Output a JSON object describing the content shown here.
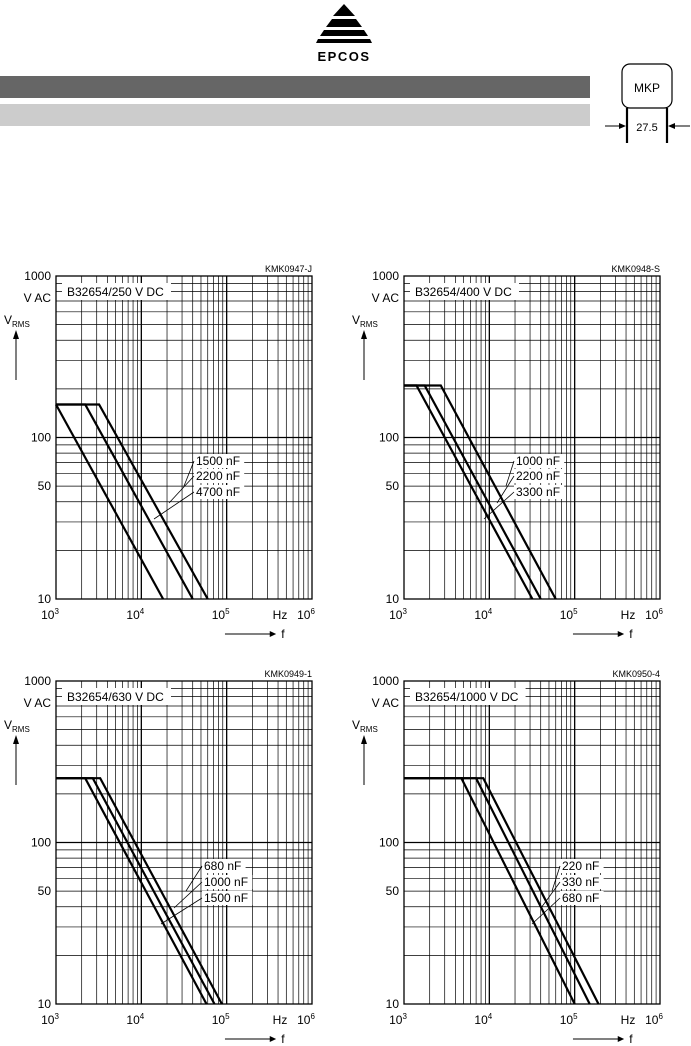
{
  "header": {
    "brand": "EPCOS",
    "logo_icon": "epcos-triangle-logo-icon",
    "bar_dark_color": "#666666",
    "bar_light_color": "#cccccc",
    "package_label": "MKP",
    "package_pitch": "27.5"
  },
  "chart_data": [
    {
      "type": "line",
      "code": "KMK0947-J",
      "box_label": "B32654/250 V DC",
      "y_unit": "V AC",
      "ylabel": "V",
      "ylabel_sub": "RMS",
      "xlabel": "f",
      "x_unit": "Hz",
      "x_scale": "log",
      "y_scale": "log",
      "xlim": [
        1000,
        1000000
      ],
      "ylim": [
        10,
        1000
      ],
      "x_ticks": [
        "10^3",
        "10^4",
        "10^5",
        "10^6"
      ],
      "y_ticks": [
        "1000",
        "100",
        "50",
        "10"
      ],
      "grid": true,
      "series": [
        {
          "name": "1500 nF",
          "points": [
            [
              1000,
              160
            ],
            [
              3200,
              160
            ],
            [
              60000,
              10
            ]
          ]
        },
        {
          "name": "2200 nF",
          "points": [
            [
              1000,
              160
            ],
            [
              2200,
              160
            ],
            [
              40000,
              10
            ]
          ]
        },
        {
          "name": "4700 nF",
          "points": [
            [
              1000,
              160
            ],
            [
              18000,
              10
            ]
          ]
        }
      ]
    },
    {
      "type": "line",
      "code": "KMK0948-S",
      "box_label": "B32654/400 V DC",
      "y_unit": "V AC",
      "ylabel": "V",
      "ylabel_sub": "RMS",
      "xlabel": "f",
      "x_unit": "Hz",
      "x_scale": "log",
      "y_scale": "log",
      "xlim": [
        1000,
        1000000
      ],
      "ylim": [
        10,
        1000
      ],
      "x_ticks": [
        "10^3",
        "10^4",
        "10^5",
        "10^6"
      ],
      "y_ticks": [
        "1000",
        "100",
        "50",
        "10"
      ],
      "grid": true,
      "series": [
        {
          "name": "1000 nF",
          "points": [
            [
              1000,
              210
            ],
            [
              2700,
              210
            ],
            [
              60000,
              10
            ]
          ]
        },
        {
          "name": "2200 nF",
          "points": [
            [
              1000,
              210
            ],
            [
              1750,
              210
            ],
            [
              40000,
              10
            ]
          ]
        },
        {
          "name": "3300 nF",
          "points": [
            [
              1000,
              210
            ],
            [
              1400,
              210
            ],
            [
              32000,
              10
            ]
          ]
        }
      ]
    },
    {
      "type": "line",
      "code": "KMK0949-1",
      "box_label": "B32654/630 V DC",
      "y_unit": "V AC",
      "ylabel": "V",
      "ylabel_sub": "RMS",
      "xlabel": "f",
      "x_unit": "Hz",
      "x_scale": "log",
      "y_scale": "log",
      "xlim": [
        1000,
        1000000
      ],
      "ylim": [
        10,
        1000
      ],
      "x_ticks": [
        "10^3",
        "10^4",
        "10^5",
        "10^6"
      ],
      "y_ticks": [
        "1000",
        "100",
        "50",
        "10"
      ],
      "grid": true,
      "series": [
        {
          "name": "680 nF",
          "points": [
            [
              1000,
              250
            ],
            [
              3300,
              250
            ],
            [
              88000,
              10
            ]
          ]
        },
        {
          "name": "1000 nF",
          "points": [
            [
              1000,
              250
            ],
            [
              2700,
              250
            ],
            [
              72000,
              10
            ]
          ]
        },
        {
          "name": "1500 nF",
          "points": [
            [
              1000,
              250
            ],
            [
              2200,
              250
            ],
            [
              58000,
              10
            ]
          ]
        }
      ]
    },
    {
      "type": "line",
      "code": "KMK0950-4",
      "box_label": "B32654/1000 V DC",
      "y_unit": "V AC",
      "ylabel": "V",
      "ylabel_sub": "RMS",
      "xlabel": "f",
      "x_unit": "Hz",
      "x_scale": "log",
      "y_scale": "log",
      "xlim": [
        1000,
        1000000
      ],
      "ylim": [
        10,
        1000
      ],
      "x_ticks": [
        "10^3",
        "10^4",
        "10^5",
        "10^6"
      ],
      "y_ticks": [
        "1000",
        "100",
        "50",
        "10"
      ],
      "grid": true,
      "series": [
        {
          "name": "220 nF",
          "points": [
            [
              1000,
              250
            ],
            [
              8500,
              250
            ],
            [
              190000,
              10
            ]
          ]
        },
        {
          "name": "330 nF",
          "points": [
            [
              1000,
              250
            ],
            [
              7000,
              250
            ],
            [
              150000,
              10
            ]
          ]
        },
        {
          "name": "680 nF",
          "points": [
            [
              1000,
              250
            ],
            [
              4700,
              250
            ],
            [
              100000,
              10
            ]
          ]
        }
      ]
    }
  ]
}
